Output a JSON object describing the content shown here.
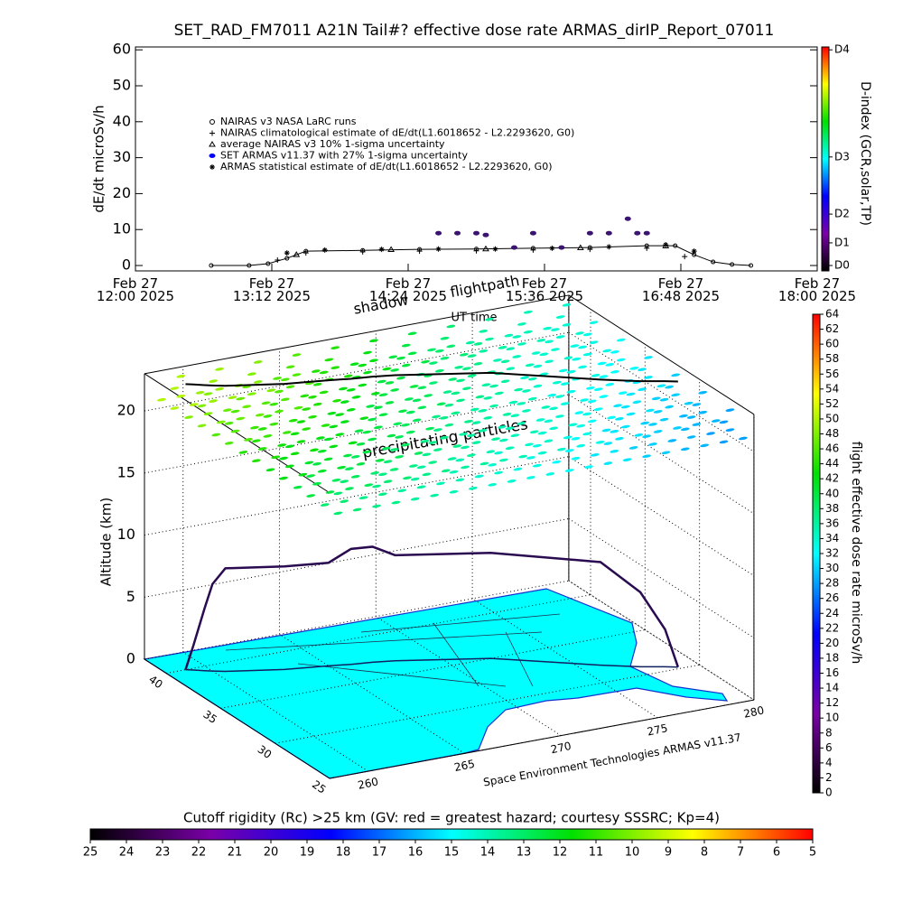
{
  "chart_data": [
    {
      "type": "line",
      "title": "SET_RAD_FM7011  A21N Tail#? effective dose rate ARMAS_dirIP_Report_07011",
      "ylabel": "dE/dt microSv/h",
      "xlabel": "UT time",
      "xlim": [
        "2025-02-27T12:00",
        "2025-02-27T18:00"
      ],
      "xticks": [
        {
          "value": "2025-02-27T12:00",
          "label": "Feb 27\n12:00 2025"
        },
        {
          "value": "2025-02-27T13:12",
          "label": "Feb 27\n13:12 2025"
        },
        {
          "value": "2025-02-27T14:24",
          "label": "Feb 27\n14:24 2025"
        },
        {
          "value": "2025-02-27T15:36",
          "label": "Feb 27\n15:36 2025"
        },
        {
          "value": "2025-02-27T16:48",
          "label": "Feb 27\n16:48 2025"
        },
        {
          "value": "2025-02-27T18:00",
          "label": "Feb 27\n18:00 2025"
        }
      ],
      "ylim": [
        -1.5,
        60.8
      ],
      "yticks": [
        0,
        10,
        20,
        30,
        40,
        50,
        60
      ],
      "y2label": "D-index (GCR,solar,TP)",
      "y2lim": [
        -1.5,
        60.8
      ],
      "y2ticks": [
        {
          "value": 0,
          "label": "D0"
        },
        {
          "value": 6.3,
          "label": "D1"
        },
        {
          "value": 14.3,
          "label": "D2"
        },
        {
          "value": 30.2,
          "label": "D3"
        },
        {
          "value": 60,
          "label": "D4"
        }
      ],
      "legend": "upper left",
      "series": [
        {
          "name": "NAIRAS v3 NASA LaRC runs",
          "color": "#000000",
          "marker": "circle",
          "x": [
            "2025-02-27T12:40",
            "2025-02-27T13:00",
            "2025-02-27T13:10",
            "2025-02-27T13:20",
            "2025-02-27T13:30",
            "2025-02-27T14:00",
            "2025-02-27T14:30",
            "2025-02-27T15:00",
            "2025-02-27T15:30",
            "2025-02-27T16:00",
            "2025-02-27T16:30",
            "2025-02-27T16:45",
            "2025-02-27T16:55",
            "2025-02-27T17:05",
            "2025-02-27T17:15",
            "2025-02-27T17:25"
          ],
          "values": [
            0,
            0,
            0.5,
            2,
            4,
            4.2,
            4.5,
            4.6,
            4.8,
            5,
            5.5,
            5.5,
            3,
            1,
            0.3,
            0
          ]
        },
        {
          "name": "NAIRAS climatological estimate of dE/dt(L1.6018652 - L2.2293620, G0)",
          "color": "#000000",
          "marker": "plus",
          "x": [
            "2025-02-27T13:15",
            "2025-02-27T13:30",
            "2025-02-27T14:00",
            "2025-02-27T14:30",
            "2025-02-27T15:00",
            "2025-02-27T15:30",
            "2025-02-27T16:00",
            "2025-02-27T16:30",
            "2025-02-27T16:50"
          ],
          "values": [
            1.5,
            3.5,
            3.8,
            4,
            4.1,
            4.3,
            4.5,
            4.8,
            2.5
          ]
        },
        {
          "name": "average NAIRAS v3 10% 1-sigma uncertainty",
          "color": "#000000",
          "marker": "triangle",
          "x": [
            "2025-02-27T13:25",
            "2025-02-27T14:15",
            "2025-02-27T15:05",
            "2025-02-27T15:55",
            "2025-02-27T16:40"
          ],
          "values": [
            3,
            4.4,
            4.6,
            4.9,
            5.4
          ]
        },
        {
          "name": "SET ARMAS v11.37 with 27% 1-sigma uncertainty",
          "color": "#3a1470",
          "marker": "dot",
          "x": [
            "2025-02-27T14:40",
            "2025-02-27T14:50",
            "2025-02-27T15:00",
            "2025-02-27T15:05",
            "2025-02-27T15:20",
            "2025-02-27T15:30",
            "2025-02-27T15:45",
            "2025-02-27T16:00",
            "2025-02-27T16:10",
            "2025-02-27T16:20",
            "2025-02-27T16:25",
            "2025-02-27T16:30"
          ],
          "values": [
            9,
            9,
            9,
            8.5,
            5,
            9,
            5,
            9,
            9,
            13,
            9,
            9
          ]
        },
        {
          "name": "ARMAS statistical estimate of dE/dt(L1.6018652 - L2.2293620, G0)",
          "color": "#000000",
          "marker": "star",
          "x": [
            "2025-02-27T13:20",
            "2025-02-27T13:40",
            "2025-02-27T14:10",
            "2025-02-27T14:40",
            "2025-02-27T15:10",
            "2025-02-27T15:40",
            "2025-02-27T16:10",
            "2025-02-27T16:40",
            "2025-02-27T16:55"
          ],
          "values": [
            3.5,
            4.3,
            4.5,
            4.6,
            4.6,
            4.8,
            5.2,
            5.8,
            4
          ]
        }
      ]
    },
    {
      "type": "flight3d",
      "zlabel": "Altitude (km)",
      "zlim": [
        0,
        23
      ],
      "zticks": [
        0,
        5,
        10,
        15,
        20
      ],
      "latlim": [
        25,
        42
      ],
      "latticks": [
        25,
        30,
        35,
        40
      ],
      "lonlim": [
        258,
        280
      ],
      "lonticks": [
        260,
        265,
        270,
        275,
        280
      ],
      "annotations": [
        "shadow",
        "flightpath",
        "precipitating particles"
      ],
      "footer": "Space Environment Technologies ARMAS v11.37",
      "flight": {
        "lon": [
          259,
          259.3,
          259.7,
          260,
          260.5,
          263,
          265,
          266,
          267,
          268,
          272,
          276,
          277.5,
          278.5,
          279
        ],
        "lat": [
          40,
          39.8,
          39.5,
          39.3,
          39,
          38,
          37.5,
          37.2,
          37,
          36.7,
          35,
          32,
          31,
          30.5,
          30.2
        ],
        "alt": [
          0,
          2,
          5,
          7,
          8.3,
          8.3,
          8.3,
          9.3,
          9.3,
          8.5,
          8.5,
          8.3,
          6,
          3,
          0
        ]
      },
      "particles": {
        "alt": 20.5,
        "lon": [
          259,
          261,
          263,
          265,
          267,
          269,
          271,
          273,
          275,
          277,
          279
        ],
        "lat": [
          41,
          38.5,
          36,
          33.5,
          31,
          28.5,
          26
        ],
        "values": [
          [
            50,
            49,
            48,
            46,
            44,
            42,
            40,
            38,
            36,
            35,
            34
          ],
          [
            48,
            47,
            46,
            44,
            42,
            40,
            38,
            37,
            35,
            34,
            33
          ],
          [
            46,
            45,
            44,
            42,
            40,
            39,
            37,
            36,
            34,
            33,
            32
          ],
          [
            44,
            43,
            42,
            40,
            39,
            37,
            36,
            35,
            33,
            32,
            31
          ],
          [
            42,
            41,
            40,
            39,
            37,
            36,
            35,
            34,
            32,
            31,
            30
          ],
          [
            40,
            39,
            38,
            37,
            36,
            35,
            34,
            33,
            31,
            30,
            29
          ],
          [
            38,
            37,
            36,
            35,
            34,
            33,
            32,
            31,
            30,
            29,
            28
          ]
        ]
      },
      "colorbar": {
        "label": "flight effective dose rate microSv/h",
        "lim": [
          0,
          64
        ],
        "ticks": [
          0,
          2,
          4,
          6,
          8,
          10,
          12,
          14,
          16,
          18,
          20,
          22,
          24,
          26,
          28,
          30,
          32,
          34,
          36,
          38,
          40,
          42,
          44,
          46,
          48,
          50,
          52,
          54,
          56,
          58,
          60,
          62,
          64
        ]
      },
      "cutoff_colorbar": {
        "label": "Cutoff rigidity (Rc) >25 km (GV: red = greatest hazard; courtesy SSSRC; Kp=4)",
        "lim": [
          25,
          5
        ],
        "ticks": [
          25,
          24,
          23,
          22,
          21,
          20,
          19,
          18,
          17,
          16,
          15,
          14,
          13,
          12,
          11,
          10,
          9,
          8,
          7,
          6,
          5
        ]
      },
      "colormap": [
        "#000000",
        "#7a00a8",
        "#0000ff",
        "#00ffff",
        "#00e000",
        "#ffff00",
        "#ff0000"
      ]
    }
  ]
}
